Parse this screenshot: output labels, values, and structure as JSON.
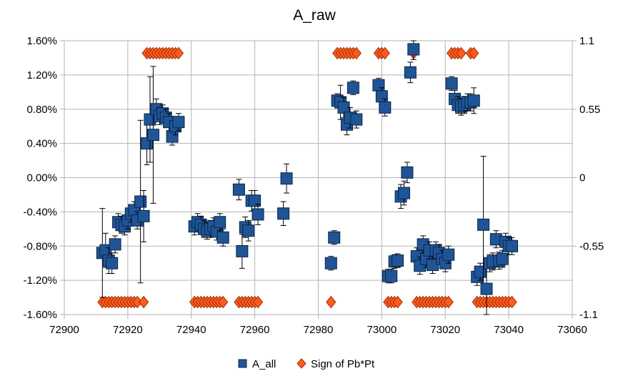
{
  "chart_data": {
    "type": "scatter",
    "title": "A_raw",
    "xlabel": "",
    "ylabel": "",
    "x_axis": {
      "min": 72900,
      "max": 73060,
      "step": 20,
      "ticks": [
        "72900",
        "72920",
        "72940",
        "72960",
        "72980",
        "73000",
        "73020",
        "73040",
        "73060"
      ]
    },
    "y_left": {
      "min": -0.016,
      "max": 0.016,
      "ticks": [
        "1.60%",
        "1.20%",
        "0.80%",
        "0.40%",
        "0.00%",
        "-0.40%",
        "-0.80%",
        "-1.20%",
        "-1.60%"
      ]
    },
    "y_right": {
      "min": -1.1,
      "max": 1.1,
      "ticks": [
        "1.1",
        "0.55",
        "0",
        "-0.55",
        "-1.1"
      ]
    },
    "grid": true,
    "legend_position": "bottom",
    "series": [
      {
        "name": "A_all",
        "axis": "left",
        "marker": "square",
        "color": "#1f5597",
        "points": [
          [
            72912,
            -0.88,
            0.52
          ],
          [
            72913,
            -0.85,
            0.2
          ],
          [
            72914,
            -0.97,
            0.15
          ],
          [
            72915,
            -1.0,
            0.12
          ],
          [
            72916,
            -0.78,
            0.1
          ],
          [
            72917,
            -0.52,
            0.1
          ],
          [
            72918,
            -0.55,
            0.1
          ],
          [
            72919,
            -0.57,
            0.1
          ],
          [
            72920,
            -0.5,
            0.1
          ],
          [
            72921,
            -0.42,
            0.1
          ],
          [
            72922,
            -0.38,
            0.1
          ],
          [
            72923,
            -0.5,
            0.1
          ],
          [
            72924,
            -0.28,
            0.95
          ],
          [
            72925,
            -0.45,
            0.3
          ],
          [
            72926,
            0.4,
            0.25
          ],
          [
            72927,
            0.68,
            0.5
          ],
          [
            72928,
            0.5,
            0.8
          ],
          [
            72929,
            0.8,
            0.12
          ],
          [
            72930,
            0.72,
            0.1
          ],
          [
            72931,
            0.75,
            0.1
          ],
          [
            72932,
            0.7,
            0.1
          ],
          [
            72933,
            0.65,
            0.1
          ],
          [
            72934,
            0.48,
            0.1
          ],
          [
            72935,
            0.6,
            0.1
          ],
          [
            72936,
            0.65,
            0.1
          ],
          [
            72941,
            -0.57,
            0.1
          ],
          [
            72942,
            -0.52,
            0.1
          ],
          [
            72943,
            -0.55,
            0.1
          ],
          [
            72944,
            -0.6,
            0.1
          ],
          [
            72945,
            -0.62,
            0.1
          ],
          [
            72946,
            -0.6,
            0.1
          ],
          [
            72947,
            -0.57,
            0.1
          ],
          [
            72948,
            -0.63,
            0.1
          ],
          [
            72949,
            -0.52,
            0.1
          ],
          [
            72950,
            -0.7,
            0.1
          ],
          [
            72955,
            -0.14,
            0.12
          ],
          [
            72956,
            -0.86,
            0.2
          ],
          [
            72957,
            -0.58,
            0.12
          ],
          [
            72958,
            -0.62,
            0.12
          ],
          [
            72959,
            -0.27,
            0.12
          ],
          [
            72960,
            -0.27,
            0.12
          ],
          [
            72961,
            -0.43,
            0.12
          ],
          [
            72969,
            -0.42,
            0.14
          ],
          [
            72970,
            -0.01,
            0.17
          ],
          [
            72984,
            -1.0,
            0.08
          ],
          [
            72985,
            -0.7,
            0.08
          ],
          [
            72986,
            0.9,
            0.08
          ],
          [
            72987,
            0.88,
            0.2
          ],
          [
            72988,
            0.82,
            0.12
          ],
          [
            72989,
            0.62,
            0.12
          ],
          [
            72990,
            0.7,
            0.12
          ],
          [
            72991,
            1.05,
            0.08
          ],
          [
            72992,
            0.68,
            0.1
          ],
          [
            72999,
            1.08,
            0.08
          ],
          [
            73000,
            0.95,
            0.1
          ],
          [
            73001,
            0.82,
            0.1
          ],
          [
            73002,
            -1.15,
            0.08
          ],
          [
            73003,
            -1.15,
            0.08
          ],
          [
            73004,
            -0.98,
            0.08
          ],
          [
            73005,
            -0.97,
            0.08
          ],
          [
            73006,
            -0.22,
            0.14
          ],
          [
            73007,
            -0.18,
            0.14
          ],
          [
            73008,
            0.06,
            0.12
          ],
          [
            73009,
            1.23,
            0.12
          ],
          [
            73010,
            1.5,
            0.12
          ],
          [
            73011,
            -0.92,
            0.1
          ],
          [
            73012,
            -1.03,
            0.1
          ],
          [
            73013,
            -0.78,
            0.1
          ],
          [
            73014,
            -0.95,
            0.1
          ],
          [
            73015,
            -0.85,
            0.1
          ],
          [
            73016,
            -1.02,
            0.1
          ],
          [
            73017,
            -0.85,
            0.1
          ],
          [
            73018,
            -0.88,
            0.1
          ],
          [
            73019,
            -0.95,
            0.1
          ],
          [
            73020,
            -1.0,
            0.1
          ],
          [
            73021,
            -0.9,
            0.1
          ],
          [
            73022,
            1.1,
            0.08
          ],
          [
            73023,
            0.92,
            0.1
          ],
          [
            73024,
            0.85,
            0.1
          ],
          [
            73025,
            0.83,
            0.1
          ],
          [
            73026,
            0.85,
            0.1
          ],
          [
            73027,
            0.88,
            0.1
          ],
          [
            73028,
            0.88,
            0.1
          ],
          [
            73029,
            0.9,
            0.15
          ],
          [
            73030,
            -1.16,
            0.1
          ],
          [
            73031,
            -1.1,
            0.1
          ],
          [
            73032,
            -0.55,
            0.8
          ],
          [
            73033,
            -1.3,
            0.3
          ],
          [
            73034,
            -1.0,
            0.1
          ],
          [
            73035,
            -0.98,
            0.1
          ],
          [
            73036,
            -0.72,
            0.1
          ],
          [
            73037,
            -0.97,
            0.1
          ],
          [
            73038,
            -0.95,
            0.1
          ],
          [
            73039,
            -0.75,
            0.1
          ],
          [
            73040,
            -0.8,
            0.1
          ],
          [
            73041,
            -0.8,
            0.1
          ]
        ]
      },
      {
        "name": "Sign of Pb*Pt",
        "axis": "right",
        "marker": "diamond",
        "color": "#ff5a1f",
        "points": [
          [
            72912,
            -1
          ],
          [
            72913,
            -1
          ],
          [
            72914,
            -1
          ],
          [
            72915,
            -1
          ],
          [
            72916,
            -1
          ],
          [
            72917,
            -1
          ],
          [
            72918,
            -1
          ],
          [
            72919,
            -1
          ],
          [
            72920,
            -1
          ],
          [
            72921,
            -1
          ],
          [
            72922,
            -1
          ],
          [
            72923,
            -1
          ],
          [
            72925,
            -1
          ],
          [
            72926,
            1
          ],
          [
            72927,
            1
          ],
          [
            72928,
            1
          ],
          [
            72929,
            1
          ],
          [
            72930,
            1
          ],
          [
            72931,
            1
          ],
          [
            72932,
            1
          ],
          [
            72933,
            1
          ],
          [
            72934,
            1
          ],
          [
            72935,
            1
          ],
          [
            72936,
            1
          ],
          [
            72941,
            -1
          ],
          [
            72942,
            -1
          ],
          [
            72943,
            -1
          ],
          [
            72944,
            -1
          ],
          [
            72945,
            -1
          ],
          [
            72946,
            -1
          ],
          [
            72947,
            -1
          ],
          [
            72948,
            -1
          ],
          [
            72949,
            -1
          ],
          [
            72950,
            -1
          ],
          [
            72955,
            -1
          ],
          [
            72956,
            -1
          ],
          [
            72957,
            -1
          ],
          [
            72958,
            -1
          ],
          [
            72959,
            -1
          ],
          [
            72960,
            -1
          ],
          [
            72961,
            -1
          ],
          [
            72984,
            -1
          ],
          [
            72986,
            1
          ],
          [
            72987,
            1
          ],
          [
            72988,
            1
          ],
          [
            72989,
            1
          ],
          [
            72990,
            1
          ],
          [
            72991,
            1
          ],
          [
            72992,
            1
          ],
          [
            72999,
            1
          ],
          [
            73000,
            1
          ],
          [
            73001,
            1
          ],
          [
            73002,
            -1
          ],
          [
            73003,
            -1
          ],
          [
            73004,
            -1
          ],
          [
            73005,
            -1
          ],
          [
            73010,
            1
          ],
          [
            73011,
            -1
          ],
          [
            73012,
            -1
          ],
          [
            73013,
            -1
          ],
          [
            73014,
            -1
          ],
          [
            73015,
            -1
          ],
          [
            73016,
            -1
          ],
          [
            73017,
            -1
          ],
          [
            73018,
            -1
          ],
          [
            73019,
            -1
          ],
          [
            73020,
            -1
          ],
          [
            73021,
            -1
          ],
          [
            73022,
            1
          ],
          [
            73023,
            1
          ],
          [
            73024,
            1
          ],
          [
            73025,
            1
          ],
          [
            73028,
            1
          ],
          [
            73029,
            1
          ],
          [
            73030,
            -1
          ],
          [
            73031,
            -1
          ],
          [
            73032,
            -1
          ],
          [
            73033,
            -1
          ],
          [
            73034,
            -1
          ],
          [
            73035,
            -1
          ],
          [
            73036,
            -1
          ],
          [
            73037,
            -1
          ],
          [
            73038,
            -1
          ],
          [
            73039,
            -1
          ],
          [
            73040,
            -1
          ],
          [
            73041,
            -1
          ]
        ]
      }
    ]
  }
}
